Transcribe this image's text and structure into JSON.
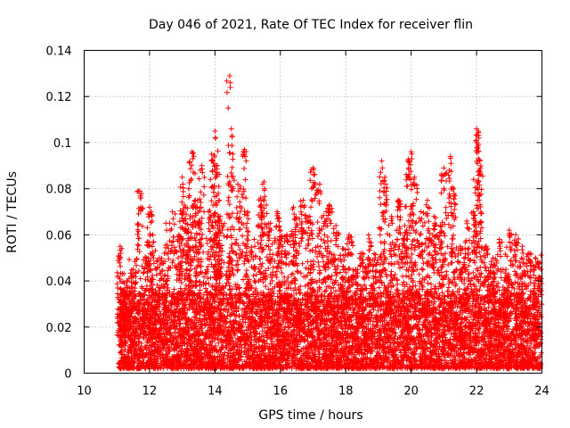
{
  "chart_data": {
    "type": "scatter",
    "title": "Day 046 of 2021, Rate Of TEC Index for receiver flin",
    "xlabel": "GPS time / hours",
    "ylabel": "ROTI / TECUs",
    "xlim": [
      10,
      24
    ],
    "ylim": [
      0,
      0.14
    ],
    "xticks": [
      10,
      12,
      14,
      16,
      18,
      20,
      22,
      24
    ],
    "xtick_labels": [
      "10",
      "12",
      "14",
      "16",
      "18",
      "20",
      "22",
      "24"
    ],
    "yticks": [
      0,
      0.02,
      0.04,
      0.06,
      0.08,
      0.1,
      0.12,
      0.14
    ],
    "ytick_labels": [
      "0",
      "0.02",
      "0.04",
      "0.06",
      "0.08",
      "0.1",
      "0.12",
      "0.14"
    ],
    "grid": true,
    "marker": "plus",
    "color": "#ff0000",
    "series": [
      {
        "name": "ROTI",
        "x": [
          11.1,
          11.2,
          11.3,
          11.5,
          11.7,
          11.9,
          12.0,
          12.1,
          12.3,
          12.5,
          12.7,
          12.9,
          13.0,
          13.1,
          13.2,
          13.3,
          13.4,
          13.5,
          13.6,
          13.8,
          13.9,
          14.0,
          14.05,
          14.1,
          14.2,
          14.45,
          14.5,
          14.7,
          14.9,
          15.0,
          15.2,
          15.4,
          15.5,
          15.7,
          15.9,
          16.0,
          16.2,
          16.4,
          16.5,
          16.7,
          16.9,
          17.0,
          17.2,
          17.4,
          17.5,
          17.7,
          17.9,
          18.1,
          18.3,
          18.5,
          18.7,
          18.9,
          19.1,
          19.2,
          19.4,
          19.6,
          19.8,
          19.9,
          20.0,
          20.1,
          20.3,
          20.5,
          20.7,
          20.9,
          21.0,
          21.2,
          21.3,
          21.5,
          21.7,
          21.9,
          22.0,
          22.05,
          22.1,
          22.3,
          22.5,
          22.7,
          22.9,
          23.0,
          23.2,
          23.4,
          23.6,
          23.8,
          23.95
        ],
        "y": [
          0.055,
          0.035,
          0.04,
          0.045,
          0.079,
          0.05,
          0.072,
          0.06,
          0.05,
          0.065,
          0.07,
          0.06,
          0.085,
          0.072,
          0.08,
          0.096,
          0.075,
          0.066,
          0.09,
          0.07,
          0.095,
          0.105,
          0.09,
          0.078,
          0.065,
          0.129,
          0.106,
          0.082,
          0.097,
          0.07,
          0.058,
          0.076,
          0.083,
          0.065,
          0.07,
          0.062,
          0.06,
          0.072,
          0.067,
          0.075,
          0.068,
          0.089,
          0.082,
          0.07,
          0.073,
          0.064,
          0.054,
          0.06,
          0.045,
          0.052,
          0.06,
          0.05,
          0.092,
          0.085,
          0.068,
          0.075,
          0.064,
          0.092,
          0.096,
          0.085,
          0.07,
          0.075,
          0.068,
          0.064,
          0.089,
          0.094,
          0.08,
          0.055,
          0.066,
          0.07,
          0.106,
          0.105,
          0.092,
          0.055,
          0.05,
          0.058,
          0.045,
          0.062,
          0.06,
          0.055,
          0.052,
          0.05,
          0.048
        ]
      }
    ],
    "background_noise": {
      "x_start": 11.05,
      "x_end": 23.98,
      "baseline_low": 0.002,
      "baseline_high": 0.035,
      "count": 6500
    }
  }
}
